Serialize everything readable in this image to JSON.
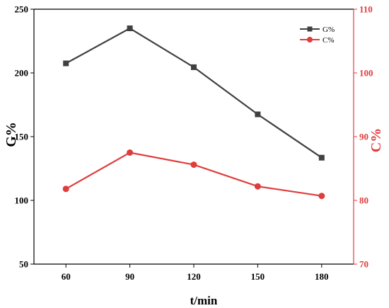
{
  "chart_data": {
    "type": "line",
    "x": [
      60,
      90,
      120,
      150,
      180
    ],
    "xlabel": "t/min",
    "x_ticks": [
      "60",
      "90",
      "120",
      "150",
      "180"
    ],
    "xlim": [
      45,
      195
    ],
    "grid": false,
    "legend_placement": "top-right",
    "series": [
      {
        "name": "G%",
        "axis": "left",
        "color": "#404040",
        "marker": "square",
        "values": [
          207.5,
          235.0,
          204.5,
          167.5,
          133.5
        ]
      },
      {
        "name": "C%",
        "axis": "right",
        "color": "#e03c3c",
        "marker": "circle",
        "values": [
          81.8,
          87.5,
          85.6,
          82.2,
          80.7
        ]
      }
    ],
    "y_left": {
      "label": "G%",
      "ylim": [
        50,
        250
      ],
      "ticks": [
        "50",
        "100",
        "150",
        "200",
        "250"
      ],
      "color": "#000000"
    },
    "y_right": {
      "label": "C%",
      "ylim": [
        70,
        110
      ],
      "ticks": [
        "70",
        "80",
        "90",
        "100",
        "110"
      ],
      "color": "#e03c3c"
    }
  }
}
